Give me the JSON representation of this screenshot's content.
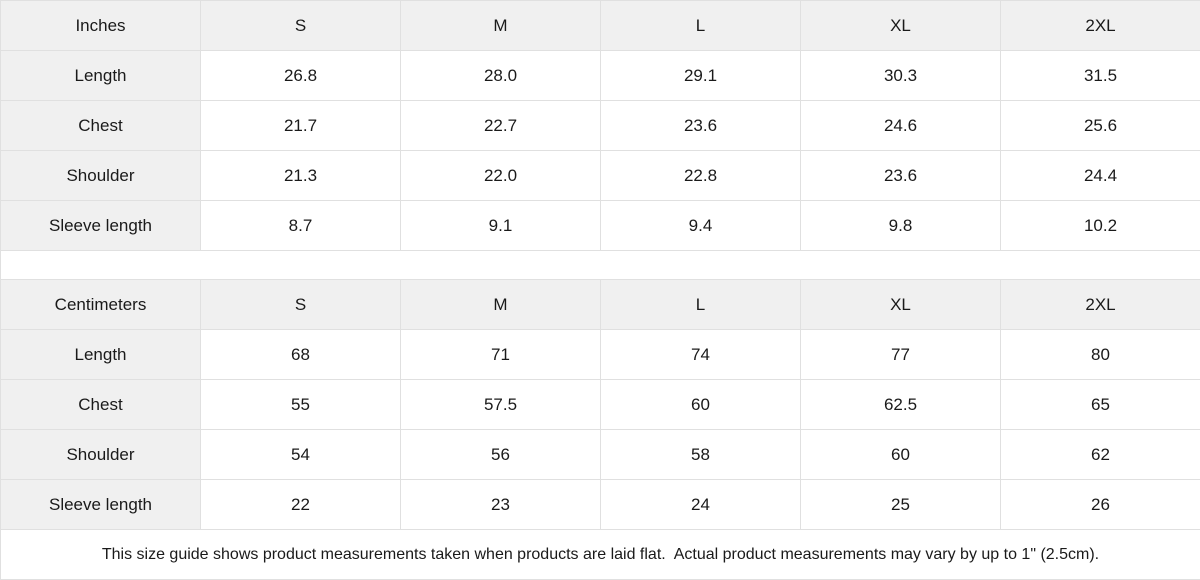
{
  "colors": {
    "background": "#ffffff",
    "header_bg": "#f0f0f0",
    "border": "#e0e0e0",
    "text": "#1a1a1a"
  },
  "chart_data": [
    {
      "type": "table",
      "title": "Inches",
      "columns": [
        "Inches",
        "S",
        "M",
        "L",
        "XL",
        "2XL"
      ],
      "rows": [
        [
          "Length",
          "26.8",
          "28.0",
          "29.1",
          "30.3",
          "31.5"
        ],
        [
          "Chest",
          "21.7",
          "22.7",
          "23.6",
          "24.6",
          "25.6"
        ],
        [
          "Shoulder",
          "21.3",
          "22.0",
          "22.8",
          "23.6",
          "24.4"
        ],
        [
          "Sleeve length",
          "8.7",
          "9.1",
          "9.4",
          "9.8",
          "10.2"
        ]
      ]
    },
    {
      "type": "table",
      "title": "Centimeters",
      "columns": [
        "Centimeters",
        "S",
        "M",
        "L",
        "XL",
        "2XL"
      ],
      "rows": [
        [
          "Length",
          "68",
          "71",
          "74",
          "77",
          "80"
        ],
        [
          "Chest",
          "55",
          "57.5",
          "60",
          "62.5",
          "65"
        ],
        [
          "Shoulder",
          "54",
          "56",
          "58",
          "60",
          "62"
        ],
        [
          "Sleeve length",
          "22",
          "23",
          "24",
          "25",
          "26"
        ]
      ]
    }
  ],
  "footer": {
    "note": "This size guide shows product measurements taken when products are laid flat.  Actual product measurements may vary by up to 1\" (2.5cm)."
  }
}
